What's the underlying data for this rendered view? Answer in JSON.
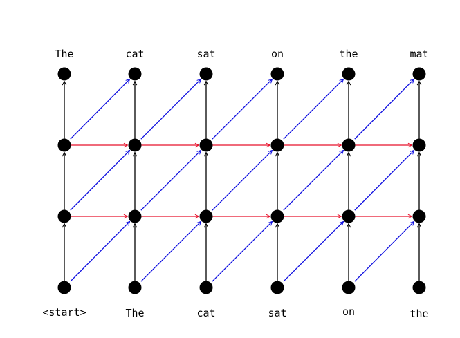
{
  "top_words": [
    "The",
    "cat",
    "sat",
    "on",
    "the",
    "mat"
  ],
  "bottom_words": [
    "<start>",
    "The",
    "cat",
    "sat",
    "on",
    "the"
  ],
  "grid": {
    "columns": 6,
    "rows": 4
  },
  "colors": {
    "node": "#000000",
    "vertical_edge": "#000000",
    "horizontal_edge": "#e8102a",
    "diagonal_edge": "#1010e0"
  }
}
